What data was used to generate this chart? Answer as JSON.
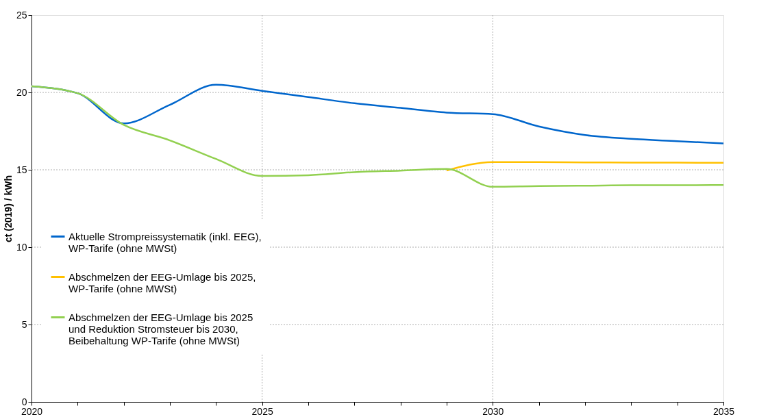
{
  "chart_data": {
    "type": "line",
    "ylabel": "ct (2019) / kWh",
    "x": [
      2020,
      2021,
      2022,
      2023,
      2024,
      2025,
      2026,
      2027,
      2028,
      2029,
      2030,
      2031,
      2032,
      2033,
      2034,
      2035
    ],
    "series": [
      {
        "name": "Aktuelle Strompreissystematik (inkl. EEG),\nWP-Tarife (ohne MWSt)",
        "color": "#0066cc",
        "values": [
          20.4,
          19.95,
          18.0,
          19.2,
          20.5,
          20.1,
          19.7,
          19.3,
          19.0,
          18.7,
          18.6,
          17.8,
          17.25,
          17.0,
          16.85,
          16.7
        ]
      },
      {
        "name": "Abschmelzen der EEG-Umlage bis 2025,\nWP-Tarife (ohne MWSt)",
        "color": "#ffc000",
        "values": [
          null,
          null,
          null,
          null,
          null,
          null,
          null,
          null,
          null,
          14.95,
          15.5,
          15.5,
          15.48,
          15.47,
          15.46,
          15.45
        ]
      },
      {
        "name": "Abschmelzen der EEG-Umlage bis 2025\nund Reduktion Stromsteuer bis 2030,\nBeibehaltung WP-Tarife (ohne MWSt)",
        "color": "#92d050",
        "values": [
          20.4,
          19.95,
          17.9,
          16.9,
          15.7,
          14.6,
          14.65,
          14.85,
          14.95,
          15.05,
          13.9,
          13.95,
          13.97,
          14.0,
          14.0,
          14.02
        ]
      }
    ],
    "xlim": [
      2020,
      2035
    ],
    "xticks": [
      2020,
      {
        "value": 2021,
        "label": null
      },
      {
        "value": 2022,
        "label": null
      },
      {
        "value": 2023,
        "label": null
      },
      {
        "value": 2024,
        "label": null
      },
      2025,
      {
        "value": 2026,
        "label": null
      },
      {
        "value": 2027,
        "label": null
      },
      {
        "value": 2028,
        "label": null
      },
      {
        "value": 2029,
        "label": null
      },
      2030,
      {
        "value": 2031,
        "label": null
      },
      {
        "value": 2032,
        "label": null
      },
      {
        "value": 2033,
        "label": null
      },
      {
        "value": 2034,
        "label": null
      },
      2035
    ],
    "ylim": [
      0,
      25
    ],
    "yticks": [
      0,
      5,
      10,
      15,
      20,
      25
    ],
    "grid": true,
    "legend": "left",
    "marker": "none",
    "line_style": "solid"
  }
}
